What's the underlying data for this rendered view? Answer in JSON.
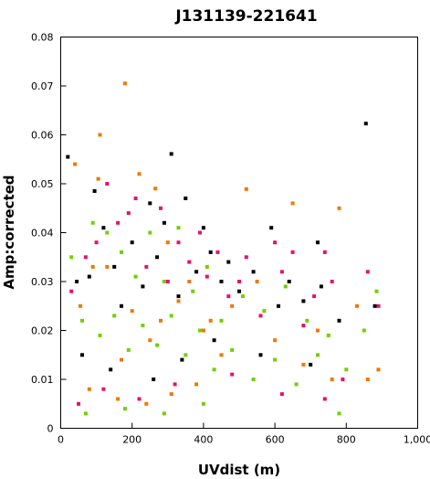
{
  "chart_data": {
    "type": "scatter",
    "title": "J131139-221641",
    "xlabel": "UVdist (m)",
    "ylabel": "Amp:corrected",
    "xlim": [
      0,
      1000
    ],
    "ylim": [
      0,
      0.08
    ],
    "x_ticks": [
      0,
      200,
      400,
      600,
      800,
      1000
    ],
    "x_tick_labels": [
      "0",
      "200",
      "400",
      "600",
      "800",
      "1,000"
    ],
    "y_ticks": [
      0,
      0.01,
      0.02,
      0.03,
      0.04,
      0.05,
      0.06,
      0.07,
      0.08
    ],
    "y_tick_labels": [
      "0",
      "0.01",
      "0.02",
      "0.03",
      "0.04",
      "0.05",
      "0.06",
      "0.07",
      "0.08"
    ],
    "grid": false,
    "colors": [
      "#000000",
      "#e8106e",
      "#f07800",
      "#70d000"
    ],
    "series": [
      {
        "values": [
          [
            20,
            0.0555
          ],
          [
            45,
            0.03
          ],
          [
            80,
            0.031
          ],
          [
            95,
            0.0485
          ],
          [
            120,
            0.041
          ],
          [
            150,
            0.033
          ],
          [
            170,
            0.025
          ],
          [
            200,
            0.038
          ],
          [
            230,
            0.029
          ],
          [
            250,
            0.046
          ],
          [
            270,
            0.035
          ],
          [
            290,
            0.042
          ],
          [
            310,
            0.0561
          ],
          [
            330,
            0.027
          ],
          [
            350,
            0.047
          ],
          [
            380,
            0.032
          ],
          [
            400,
            0.041
          ],
          [
            420,
            0.036
          ],
          [
            450,
            0.03
          ],
          [
            470,
            0.034
          ],
          [
            500,
            0.028
          ],
          [
            540,
            0.032
          ],
          [
            590,
            0.041
          ],
          [
            610,
            0.025
          ],
          [
            640,
            0.03
          ],
          [
            680,
            0.026
          ],
          [
            720,
            0.038
          ],
          [
            730,
            0.029
          ],
          [
            780,
            0.022
          ],
          [
            855,
            0.0623
          ],
          [
            880,
            0.025
          ],
          [
            60,
            0.015
          ],
          [
            140,
            0.012
          ],
          [
            260,
            0.01
          ],
          [
            340,
            0.014
          ],
          [
            430,
            0.018
          ],
          [
            560,
            0.015
          ],
          [
            700,
            0.013
          ]
        ]
      },
      {
        "values": [
          [
            30,
            0.028
          ],
          [
            70,
            0.035
          ],
          [
            100,
            0.038
          ],
          [
            130,
            0.05
          ],
          [
            160,
            0.042
          ],
          [
            190,
            0.044
          ],
          [
            210,
            0.047
          ],
          [
            240,
            0.033
          ],
          [
            280,
            0.045
          ],
          [
            300,
            0.03
          ],
          [
            330,
            0.038
          ],
          [
            360,
            0.034
          ],
          [
            390,
            0.04
          ],
          [
            410,
            0.031
          ],
          [
            440,
            0.036
          ],
          [
            470,
            0.027
          ],
          [
            500,
            0.03
          ],
          [
            520,
            0.035
          ],
          [
            560,
            0.023
          ],
          [
            600,
            0.038
          ],
          [
            620,
            0.032
          ],
          [
            650,
            0.036
          ],
          [
            680,
            0.021
          ],
          [
            710,
            0.027
          ],
          [
            740,
            0.036
          ],
          [
            760,
            0.03
          ],
          [
            790,
            0.01
          ],
          [
            860,
            0.032
          ],
          [
            890,
            0.025
          ],
          [
            50,
            0.005
          ],
          [
            120,
            0.008
          ],
          [
            220,
            0.006
          ],
          [
            320,
            0.009
          ],
          [
            480,
            0.011
          ],
          [
            620,
            0.007
          ],
          [
            740,
            0.006
          ]
        ]
      },
      {
        "values": [
          [
            40,
            0.054
          ],
          [
            55,
            0.025
          ],
          [
            90,
            0.033
          ],
          [
            105,
            0.051
          ],
          [
            110,
            0.06
          ],
          [
            130,
            0.033
          ],
          [
            170,
            0.014
          ],
          [
            180,
            0.0705
          ],
          [
            200,
            0.024
          ],
          [
            220,
            0.052
          ],
          [
            250,
            0.018
          ],
          [
            265,
            0.049
          ],
          [
            280,
            0.022
          ],
          [
            300,
            0.038
          ],
          [
            330,
            0.026
          ],
          [
            360,
            0.03
          ],
          [
            400,
            0.02
          ],
          [
            420,
            0.022
          ],
          [
            450,
            0.015
          ],
          [
            480,
            0.025
          ],
          [
            520,
            0.0489
          ],
          [
            550,
            0.03
          ],
          [
            600,
            0.018
          ],
          [
            650,
            0.046
          ],
          [
            680,
            0.013
          ],
          [
            720,
            0.02
          ],
          [
            760,
            0.01
          ],
          [
            780,
            0.045
          ],
          [
            830,
            0.025
          ],
          [
            860,
            0.01
          ],
          [
            890,
            0.012
          ],
          [
            80,
            0.008
          ],
          [
            160,
            0.006
          ],
          [
            240,
            0.005
          ],
          [
            310,
            0.007
          ],
          [
            380,
            0.009
          ]
        ]
      },
      {
        "values": [
          [
            30,
            0.035
          ],
          [
            60,
            0.022
          ],
          [
            90,
            0.042
          ],
          [
            110,
            0.019
          ],
          [
            130,
            0.04
          ],
          [
            150,
            0.023
          ],
          [
            170,
            0.036
          ],
          [
            190,
            0.016
          ],
          [
            210,
            0.031
          ],
          [
            230,
            0.021
          ],
          [
            250,
            0.04
          ],
          [
            270,
            0.017
          ],
          [
            290,
            0.03
          ],
          [
            310,
            0.023
          ],
          [
            330,
            0.041
          ],
          [
            350,
            0.015
          ],
          [
            370,
            0.028
          ],
          [
            390,
            0.02
          ],
          [
            410,
            0.033
          ],
          [
            430,
            0.012
          ],
          [
            450,
            0.022
          ],
          [
            480,
            0.016
          ],
          [
            510,
            0.027
          ],
          [
            540,
            0.01
          ],
          [
            570,
            0.024
          ],
          [
            600,
            0.014
          ],
          [
            630,
            0.029
          ],
          [
            660,
            0.009
          ],
          [
            690,
            0.022
          ],
          [
            720,
            0.015
          ],
          [
            750,
            0.019
          ],
          [
            780,
            0.003
          ],
          [
            800,
            0.012
          ],
          [
            850,
            0.02
          ],
          [
            885,
            0.028
          ],
          [
            70,
            0.003
          ],
          [
            180,
            0.004
          ],
          [
            290,
            0.003
          ],
          [
            400,
            0.005
          ]
        ]
      }
    ]
  }
}
